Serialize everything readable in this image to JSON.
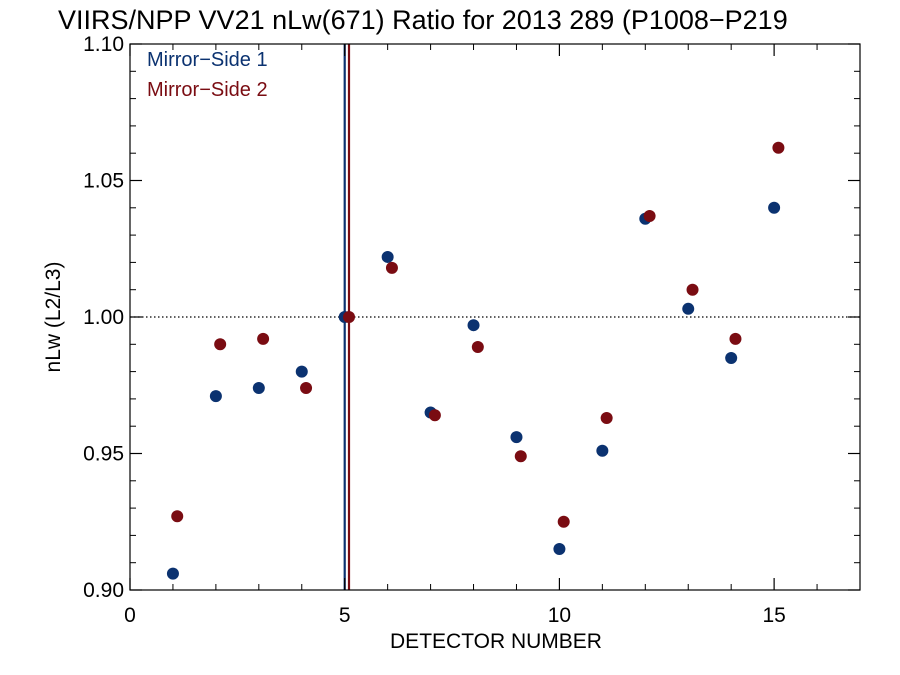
{
  "chart_data": {
    "type": "scatter",
    "title": "VIIRS/NPP VV21 nLw(671) Ratio for 2013 289 (P1008−P219",
    "xlabel": "DETECTOR NUMBER",
    "ylabel": "nLw (L2/L3)",
    "xlim": [
      0,
      17
    ],
    "ylim": [
      0.9,
      1.1
    ],
    "xticks": [
      0,
      5,
      10,
      15
    ],
    "xtick_labels": [
      "0",
      "5",
      "10",
      "15"
    ],
    "yticks": [
      0.9,
      0.95,
      1.0,
      1.05,
      1.1
    ],
    "ytick_labels": [
      "0.90",
      "0.95",
      "1.00",
      "1.05",
      "1.10"
    ],
    "reference_line": {
      "y": 1.0,
      "style": "dotted"
    },
    "legend_position": "top-left",
    "series": [
      {
        "name": "Mirror−Side 1",
        "color": "#0b3270",
        "marker_line_x": 5,
        "points": [
          [
            1,
            0.906
          ],
          [
            2,
            0.971
          ],
          [
            3,
            0.974
          ],
          [
            4,
            0.98
          ],
          [
            5,
            1.0
          ],
          [
            6,
            1.022
          ],
          [
            7,
            0.965
          ],
          [
            8,
            0.997
          ],
          [
            9,
            0.956
          ],
          [
            10,
            0.915
          ],
          [
            11,
            0.951
          ],
          [
            12,
            1.036
          ],
          [
            13,
            1.003
          ],
          [
            14,
            0.985
          ],
          [
            15,
            1.04
          ]
        ]
      },
      {
        "name": "Mirror−Side 2",
        "color": "#7a0c12",
        "marker_line_x": 5.1,
        "points": [
          [
            1.1,
            0.927
          ],
          [
            2.1,
            0.99
          ],
          [
            3.1,
            0.992
          ],
          [
            4.1,
            0.974
          ],
          [
            5.1,
            1.0
          ],
          [
            6.1,
            1.018
          ],
          [
            7.1,
            0.964
          ],
          [
            8.1,
            0.989
          ],
          [
            9.1,
            0.949
          ],
          [
            10.1,
            0.925
          ],
          [
            11.1,
            0.963
          ],
          [
            12.1,
            1.037
          ],
          [
            13.1,
            1.01
          ],
          [
            14.1,
            0.992
          ],
          [
            15.1,
            1.062
          ]
        ]
      }
    ]
  }
}
